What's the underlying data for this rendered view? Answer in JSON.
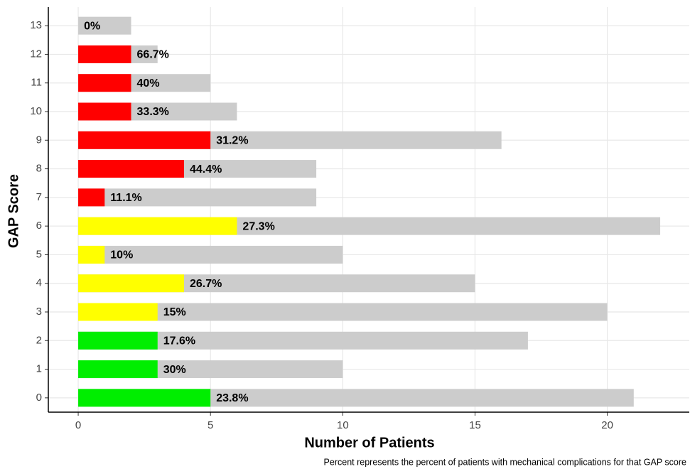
{
  "chart_data": {
    "type": "barh",
    "xlabel": "Number of Patients",
    "ylabel": "GAP Score",
    "caption": "Percent represents the percent of patients with mechanical complications for that GAP score",
    "categories": [
      "0",
      "1",
      "2",
      "3",
      "4",
      "5",
      "6",
      "7",
      "8",
      "9",
      "10",
      "11",
      "12",
      "13"
    ],
    "series": [
      {
        "color": "#cccccc",
        "values": [
          21,
          10,
          17,
          20,
          15,
          10,
          22,
          9,
          9,
          16,
          6,
          5,
          3,
          2
        ]
      },
      {
        "colors": [
          "#00ee00",
          "#00ee00",
          "#00ee00",
          "#ffff00",
          "#ffff00",
          "#ffff00",
          "#ffff00",
          "#ff0000",
          "#ff0000",
          "#ff0000",
          "#ff0000",
          "#ff0000",
          "#ff0000",
          "#ff0000"
        ],
        "values": [
          5,
          3,
          3,
          3,
          4,
          1,
          6,
          1,
          4,
          5,
          2,
          2,
          2,
          0
        ],
        "labels": [
          "23.8%",
          "30%",
          "17.6%",
          "15%",
          "26.7%",
          "10%",
          "27.3%",
          "11.1%",
          "44.4%",
          "31.2%",
          "33.3%",
          "40%",
          "66.7%",
          "0%"
        ]
      }
    ],
    "xlim": [
      -1.13,
      23.1
    ],
    "xticks": [
      0,
      5,
      10,
      15,
      20
    ],
    "grid": true
  }
}
